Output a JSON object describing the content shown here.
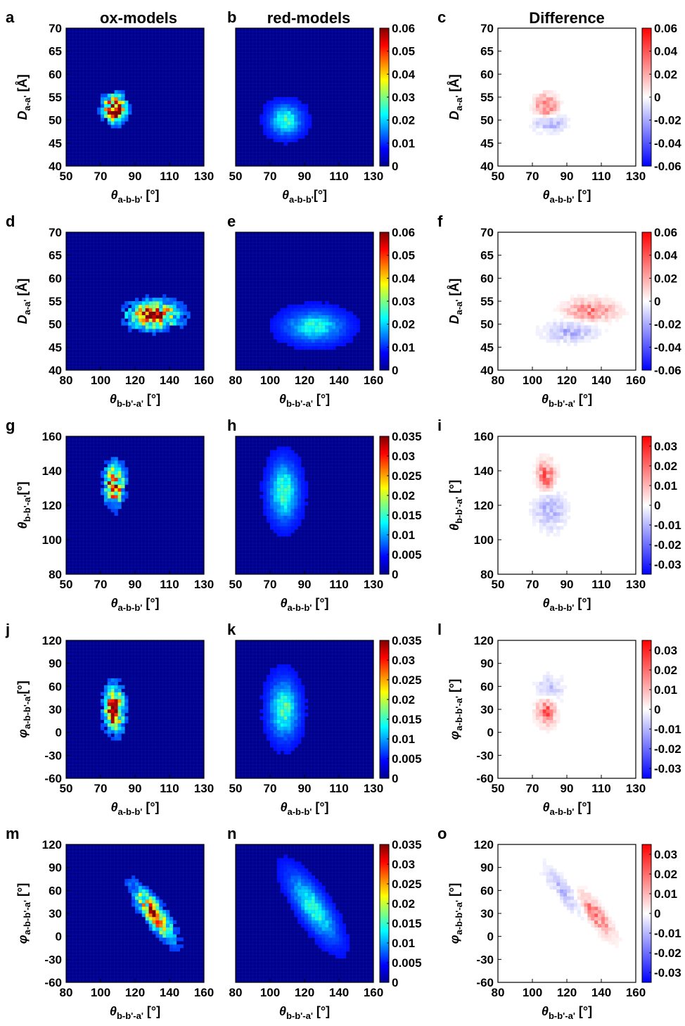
{
  "column_titles": [
    "ox-models",
    "red-models",
    "Difference"
  ],
  "chart_data": [
    {
      "type": "heatmap",
      "letter": "a",
      "row": 0,
      "col": 0,
      "kind": "seq",
      "xlim": [
        50,
        130
      ],
      "ylim": [
        40,
        70
      ],
      "xticks": [
        50,
        70,
        90,
        110,
        130
      ],
      "yticks": [
        40,
        45,
        50,
        55,
        60,
        65,
        70
      ],
      "xlabel": {
        "main": "θ",
        "sub": "a-b-b'",
        "unit": " [°]"
      },
      "ylabel": {
        "main": "D",
        "sub": "a-a'",
        "unit": " [Å]"
      },
      "blobs": [
        {
          "cx": 78,
          "cy": 52.5,
          "sx": 4,
          "sy": 1.8,
          "peak": 0.06
        }
      ],
      "spiky": true,
      "bg": "blue"
    },
    {
      "type": "heatmap",
      "letter": "b",
      "row": 0,
      "col": 1,
      "kind": "seq",
      "xlim": [
        50,
        130
      ],
      "ylim": [
        40,
        70
      ],
      "xticks": [
        50,
        70,
        90,
        110,
        130
      ],
      "yticks": [],
      "xlabel": {
        "main": "θ",
        "sub": "a-b-b'",
        "unit": "[°]"
      },
      "ylabel": null,
      "blobs": [
        {
          "cx": 79,
          "cy": 50,
          "sx": 5.5,
          "sy": 2.0,
          "peak": 0.022
        }
      ],
      "spiky": false,
      "bg": "blue",
      "colorbar": {
        "min": 0,
        "max": 0.06,
        "ticks": [
          "0",
          "0.01",
          "0.02",
          "0.03",
          "0.04",
          "0.05",
          "0.06"
        ]
      }
    },
    {
      "type": "heatmap",
      "letter": "c",
      "row": 0,
      "col": 2,
      "kind": "div",
      "xlim": [
        50,
        130
      ],
      "ylim": [
        40,
        70
      ],
      "xticks": [
        50,
        70,
        90,
        110,
        130
      ],
      "yticks": [
        40,
        45,
        50,
        55,
        60,
        65,
        70
      ],
      "xlabel": {
        "main": "θ",
        "sub": "a-b-b'",
        "unit": " [°]"
      },
      "ylabel": {
        "main": "D",
        "sub": "a-a'",
        "unit": " [Å]"
      },
      "blobs": [
        {
          "cx": 78,
          "cy": 53,
          "sx": 4,
          "sy": 1.6,
          "peak": 0.035
        },
        {
          "cx": 80,
          "cy": 49.5,
          "sx": 6,
          "sy": 1.3,
          "peak": -0.018
        }
      ],
      "spiky": true,
      "bg": "white",
      "colorbar": {
        "min": -0.06,
        "max": 0.06,
        "ticks": [
          "-0.06",
          "-0.04",
          "-0.02",
          "0",
          "0.02",
          "0.04",
          "0.06"
        ]
      }
    },
    {
      "type": "heatmap",
      "letter": "d",
      "row": 1,
      "col": 0,
      "kind": "seq",
      "xlim": [
        80,
        160
      ],
      "ylim": [
        40,
        70
      ],
      "xticks": [
        80,
        100,
        120,
        140,
        160
      ],
      "yticks": [
        40,
        45,
        50,
        55,
        60,
        65,
        70
      ],
      "xlabel": {
        "main": "θ",
        "sub": "b-b'-a'",
        "unit": " [°]"
      },
      "ylabel": {
        "main": "D",
        "sub": "a-a'",
        "unit": " [Å]"
      },
      "blobs": [
        {
          "cx": 131,
          "cy": 52,
          "sx": 9,
          "sy": 1.8,
          "peak": 0.05
        }
      ],
      "spiky": true,
      "bg": "blue"
    },
    {
      "type": "heatmap",
      "letter": "e",
      "row": 1,
      "col": 1,
      "kind": "seq",
      "xlim": [
        80,
        160
      ],
      "ylim": [
        40,
        70
      ],
      "xticks": [
        80,
        100,
        120,
        140,
        160
      ],
      "yticks": [],
      "xlabel": {
        "main": "θ",
        "sub": "b-b'-a'",
        "unit": " [°]"
      },
      "ylabel": null,
      "blobs": [
        {
          "cx": 126,
          "cy": 49.5,
          "sx": 10,
          "sy": 2.0,
          "peak": 0.02
        }
      ],
      "spiky": false,
      "bg": "blue",
      "colorbar": {
        "min": 0,
        "max": 0.06,
        "ticks": [
          "0",
          "0.01",
          "0.02",
          "0.03",
          "0.04",
          "0.05",
          "0.06"
        ]
      }
    },
    {
      "type": "heatmap",
      "letter": "f",
      "row": 1,
      "col": 2,
      "kind": "div",
      "xlim": [
        80,
        160
      ],
      "ylim": [
        40,
        70
      ],
      "xticks": [
        80,
        100,
        120,
        140,
        160
      ],
      "yticks": [
        40,
        45,
        50,
        55,
        60,
        65,
        70
      ],
      "xlabel": {
        "main": "θ",
        "sub": "b-b'-a'",
        "unit": " [°]"
      },
      "ylabel": {
        "main": "D",
        "sub": "a-a'",
        "unit": " [Å]"
      },
      "blobs": [
        {
          "cx": 134,
          "cy": 53,
          "sx": 9,
          "sy": 1.5,
          "peak": 0.03
        },
        {
          "cx": 122,
          "cy": 48.5,
          "sx": 10,
          "sy": 1.5,
          "peak": -0.016
        }
      ],
      "spiky": true,
      "bg": "white",
      "colorbar": {
        "min": -0.06,
        "max": 0.06,
        "ticks": [
          "-0.06",
          "-0.04",
          "-0.02",
          "0",
          "0.02",
          "0.04",
          "0.06"
        ]
      }
    },
    {
      "type": "heatmap",
      "letter": "g",
      "row": 2,
      "col": 0,
      "kind": "seq",
      "xlim": [
        50,
        130
      ],
      "ylim": [
        80,
        160
      ],
      "xticks": [
        50,
        70,
        90,
        110,
        130
      ],
      "yticks": [
        80,
        100,
        120,
        140,
        160
      ],
      "xlabel": {
        "main": "θ",
        "sub": "a-b-b'",
        "unit": " [°]"
      },
      "ylabel": {
        "main": "θ",
        "sub": "b-b'-a'",
        "unit": "[°]"
      },
      "blobs": [
        {
          "cx": 78,
          "cy": 132,
          "sx": 3.5,
          "sy": 7,
          "peak": 0.03
        }
      ],
      "spiky": true,
      "bg": "blue"
    },
    {
      "type": "heatmap",
      "letter": "h",
      "row": 2,
      "col": 1,
      "kind": "seq",
      "xlim": [
        50,
        130
      ],
      "ylim": [
        80,
        160
      ],
      "xticks": [
        50,
        70,
        90,
        110,
        130
      ],
      "yticks": [],
      "xlabel": {
        "main": "θ",
        "sub": "a-b-b'",
        "unit": " [°]"
      },
      "ylabel": null,
      "blobs": [
        {
          "cx": 78,
          "cy": 128,
          "sx": 5,
          "sy": 10,
          "peak": 0.014
        }
      ],
      "spiky": false,
      "bg": "blue",
      "colorbar": {
        "min": 0,
        "max": 0.035,
        "ticks": [
          "0",
          "0.005",
          "0.01",
          "0.015",
          "0.02",
          "0.025",
          "0.03",
          "0.035"
        ]
      }
    },
    {
      "type": "heatmap",
      "letter": "i",
      "row": 2,
      "col": 2,
      "kind": "div",
      "xlim": [
        50,
        130
      ],
      "ylim": [
        80,
        160
      ],
      "xticks": [
        50,
        70,
        90,
        110,
        130
      ],
      "yticks": [
        80,
        100,
        120,
        140,
        160
      ],
      "xlabel": {
        "main": "θ",
        "sub": "a-b-b'",
        "unit": " [°]"
      },
      "ylabel": {
        "main": "θ",
        "sub": "b-b'-a'",
        "unit": " [°]"
      },
      "blobs": [
        {
          "cx": 78,
          "cy": 137,
          "sx": 3.5,
          "sy": 6,
          "peak": 0.02
        },
        {
          "cx": 80,
          "cy": 118,
          "sx": 6,
          "sy": 8,
          "peak": -0.009
        }
      ],
      "spiky": true,
      "bg": "white",
      "colorbar": {
        "min": -0.035,
        "max": 0.035,
        "ticks": [
          "-0.03",
          "-0.02",
          "-0.01",
          "0",
          "0.01",
          "0.02",
          "0.03"
        ],
        "tickvals": [
          -0.03,
          -0.02,
          -0.01,
          0,
          0.01,
          0.02,
          0.03
        ]
      }
    },
    {
      "type": "heatmap",
      "letter": "j",
      "row": 3,
      "col": 0,
      "kind": "seq",
      "xlim": [
        50,
        130
      ],
      "ylim": [
        -60,
        120
      ],
      "xticks": [
        50,
        70,
        90,
        110,
        130
      ],
      "yticks": [
        -60,
        -30,
        0,
        30,
        60,
        90,
        120
      ],
      "xlabel": {
        "main": "θ",
        "sub": "a-b-b'",
        "unit": " [°]"
      },
      "ylabel": {
        "main": "φ",
        "sub": "a-b-b'-a'",
        "unit": "[°]"
      },
      "blobs": [
        {
          "cx": 78,
          "cy": 30,
          "sx": 3.5,
          "sy": 18,
          "peak": 0.03,
          "tilt": -0.12
        }
      ],
      "spiky": true,
      "bg": "blue"
    },
    {
      "type": "heatmap",
      "letter": "k",
      "row": 3,
      "col": 1,
      "kind": "seq",
      "xlim": [
        50,
        130
      ],
      "ylim": [
        -60,
        120
      ],
      "xticks": [
        50,
        70,
        90,
        110,
        130
      ],
      "yticks": [],
      "xlabel": {
        "main": "θ",
        "sub": "a-b-b'",
        "unit": " [°]"
      },
      "ylabel": null,
      "blobs": [
        {
          "cx": 78,
          "cy": 30,
          "sx": 5,
          "sy": 22,
          "peak": 0.014,
          "tilt": -0.12
        }
      ],
      "spiky": false,
      "bg": "blue",
      "colorbar": {
        "min": 0,
        "max": 0.035,
        "ticks": [
          "0",
          "0.005",
          "0.01",
          "0.015",
          "0.02",
          "0.025",
          "0.03",
          "0.035"
        ]
      }
    },
    {
      "type": "heatmap",
      "letter": "l",
      "row": 3,
      "col": 2,
      "kind": "div",
      "xlim": [
        50,
        130
      ],
      "ylim": [
        -60,
        120
      ],
      "xticks": [
        50,
        70,
        90,
        110,
        130
      ],
      "yticks": [
        -60,
        -30,
        0,
        30,
        60,
        90,
        120
      ],
      "xlabel": {
        "main": "θ",
        "sub": "a-b-b'",
        "unit": " [°]"
      },
      "ylabel": {
        "main": "φ",
        "sub": "a-b-b'-a'",
        "unit": " [°]"
      },
      "blobs": [
        {
          "cx": 78,
          "cy": 28,
          "sx": 3.5,
          "sy": 12,
          "peak": 0.02,
          "tilt": -0.12
        },
        {
          "cx": 80,
          "cy": 55,
          "sx": 5,
          "sy": 12,
          "peak": -0.008
        }
      ],
      "spiky": true,
      "bg": "white",
      "colorbar": {
        "min": -0.035,
        "max": 0.035,
        "ticks": [
          "-0.03",
          "-0.02",
          "-0.01",
          "0",
          "0.01",
          "0.02",
          "0.03"
        ],
        "tickvals": [
          -0.03,
          -0.02,
          -0.01,
          0,
          0.01,
          0.02,
          0.03
        ]
      }
    },
    {
      "type": "heatmap",
      "letter": "m",
      "row": 4,
      "col": 0,
      "kind": "seq",
      "xlim": [
        80,
        160
      ],
      "ylim": [
        -60,
        120
      ],
      "xticks": [
        80,
        100,
        120,
        140,
        160
      ],
      "yticks": [
        -60,
        -30,
        0,
        30,
        60,
        90,
        120
      ],
      "xlabel": {
        "main": "θ",
        "sub": "b-b'-a'",
        "unit": " [°]"
      },
      "ylabel": {
        "main": "φ",
        "sub": "a-b-b'-a'",
        "unit": " [°]"
      },
      "blobs": [
        {
          "cx": 131,
          "cy": 30,
          "sx": 7,
          "sy": 12,
          "peak": 0.026,
          "tilt": -2.4
        }
      ],
      "spiky": true,
      "bg": "blue"
    },
    {
      "type": "heatmap",
      "letter": "n",
      "row": 4,
      "col": 1,
      "kind": "seq",
      "xlim": [
        80,
        160
      ],
      "ylim": [
        -60,
        120
      ],
      "xticks": [
        80,
        100,
        120,
        140,
        160
      ],
      "yticks": [],
      "xlabel": {
        "main": "θ",
        "sub": "b-b'-a'",
        "unit": " [°]"
      },
      "ylabel": null,
      "blobs": [
        {
          "cx": 125,
          "cy": 38,
          "sx": 8,
          "sy": 16,
          "peak": 0.013,
          "tilt": -2.4
        }
      ],
      "spiky": false,
      "bg": "blue",
      "colorbar": {
        "min": 0,
        "max": 0.035,
        "ticks": [
          "0",
          "0.005",
          "0.01",
          "0.015",
          "0.02",
          "0.025",
          "0.03",
          "0.035"
        ]
      }
    },
    {
      "type": "heatmap",
      "letter": "o",
      "row": 4,
      "col": 2,
      "kind": "div",
      "xlim": [
        80,
        160
      ],
      "ylim": [
        -60,
        120
      ],
      "xticks": [
        80,
        100,
        120,
        140,
        160
      ],
      "yticks": [
        -60,
        -30,
        0,
        30,
        60,
        90,
        120
      ],
      "xlabel": {
        "main": "θ",
        "sub": "b-b'-a'",
        "unit": " [°]"
      },
      "ylabel": {
        "main": "φ",
        "sub": "a-b-b'-a'",
        "unit": " [°]"
      },
      "blobs": [
        {
          "cx": 137,
          "cy": 28,
          "sx": 6,
          "sy": 10,
          "peak": 0.018,
          "tilt": -2.4
        },
        {
          "cx": 118,
          "cy": 60,
          "sx": 7,
          "sy": 10,
          "peak": -0.009,
          "tilt": -2.4
        }
      ],
      "spiky": true,
      "bg": "white",
      "colorbar": {
        "min": -0.035,
        "max": 0.035,
        "ticks": [
          "-0.03",
          "-0.02",
          "-0.01",
          "0",
          "0.01",
          "0.02",
          "0.03"
        ],
        "tickvals": [
          -0.03,
          -0.02,
          -0.01,
          0,
          0.01,
          0.02,
          0.03
        ]
      }
    }
  ]
}
